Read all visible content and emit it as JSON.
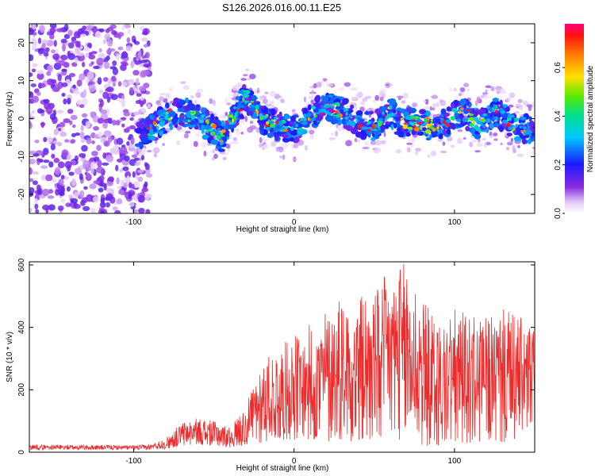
{
  "title": "S126.2026.016.00.11.E25",
  "chart_data": [
    {
      "type": "heatmap",
      "title": "S126.2026.016.00.11.E25",
      "xlabel": "Height of straight line (km)",
      "ylabel": "Frequency (Hz)",
      "xlim": [
        -165,
        150
      ],
      "ylim": [
        -25,
        25
      ],
      "xticks": [
        -100,
        0,
        100
      ],
      "yticks": [
        -20,
        -10,
        0,
        10,
        20
      ],
      "colorbar": {
        "label": "Normalized spectral amplitude",
        "range": [
          0,
          0.78
        ],
        "ticks": [
          0.0,
          0.2,
          0.4,
          0.6
        ],
        "tick_labels": [
          "0.0",
          "0.2",
          "0.4",
          "0.6"
        ]
      },
      "features": {
        "noise_region_x": [
          -165,
          -90
        ],
        "signal_start_x": -97,
        "ridge_center_hz": [
          [
            -97,
            -4
          ],
          [
            -90,
            -3
          ],
          [
            -80,
            0
          ],
          [
            -70,
            2
          ],
          [
            -60,
            0
          ],
          [
            -50,
            -3
          ],
          [
            -45,
            -5
          ],
          [
            -40,
            0
          ],
          [
            -35,
            2
          ],
          [
            -30,
            6
          ],
          [
            -20,
            0
          ],
          [
            -10,
            -2
          ],
          [
            0,
            -3
          ],
          [
            10,
            1
          ],
          [
            20,
            3
          ],
          [
            30,
            2
          ],
          [
            40,
            -1
          ],
          [
            50,
            -2
          ],
          [
            60,
            2
          ],
          [
            65,
            -1
          ],
          [
            75,
            -1
          ],
          [
            85,
            -2
          ],
          [
            95,
            -1
          ],
          [
            105,
            2
          ],
          [
            115,
            -2
          ],
          [
            125,
            2
          ],
          [
            135,
            -1
          ],
          [
            145,
            -3
          ],
          [
            150,
            -4
          ]
        ],
        "peak_amplitude": 0.78
      }
    },
    {
      "type": "line",
      "xlabel": "Height of straight line (km)",
      "ylabel": "SNR (10 * v/v)",
      "xlim": [
        -165,
        150
      ],
      "ylim": [
        0,
        610
      ],
      "xticks": [
        -100,
        0,
        100
      ],
      "yticks": [
        0,
        200,
        400,
        600
      ],
      "color": "#ee2a2a",
      "series": [
        {
          "name": "SNR",
          "envelope_x": [
            -165,
            -100,
            -90,
            -80,
            -70,
            -60,
            -50,
            -40,
            -30,
            -20,
            -10,
            0,
            10,
            20,
            30,
            40,
            50,
            60,
            70,
            80,
            90,
            100,
            110,
            120,
            130,
            140,
            150
          ],
          "envelope_upper": [
            25,
            22,
            25,
            45,
            95,
            110,
            100,
            80,
            150,
            300,
            330,
            380,
            410,
            460,
            520,
            510,
            520,
            590,
            610,
            500,
            420,
            460,
            440,
            430,
            460,
            440,
            400
          ],
          "envelope_lower": [
            8,
            8,
            8,
            10,
            20,
            25,
            20,
            15,
            20,
            30,
            40,
            40,
            30,
            30,
            40,
            30,
            30,
            40,
            40,
            20,
            20,
            30,
            30,
            30,
            30,
            40,
            40
          ]
        }
      ]
    }
  ]
}
